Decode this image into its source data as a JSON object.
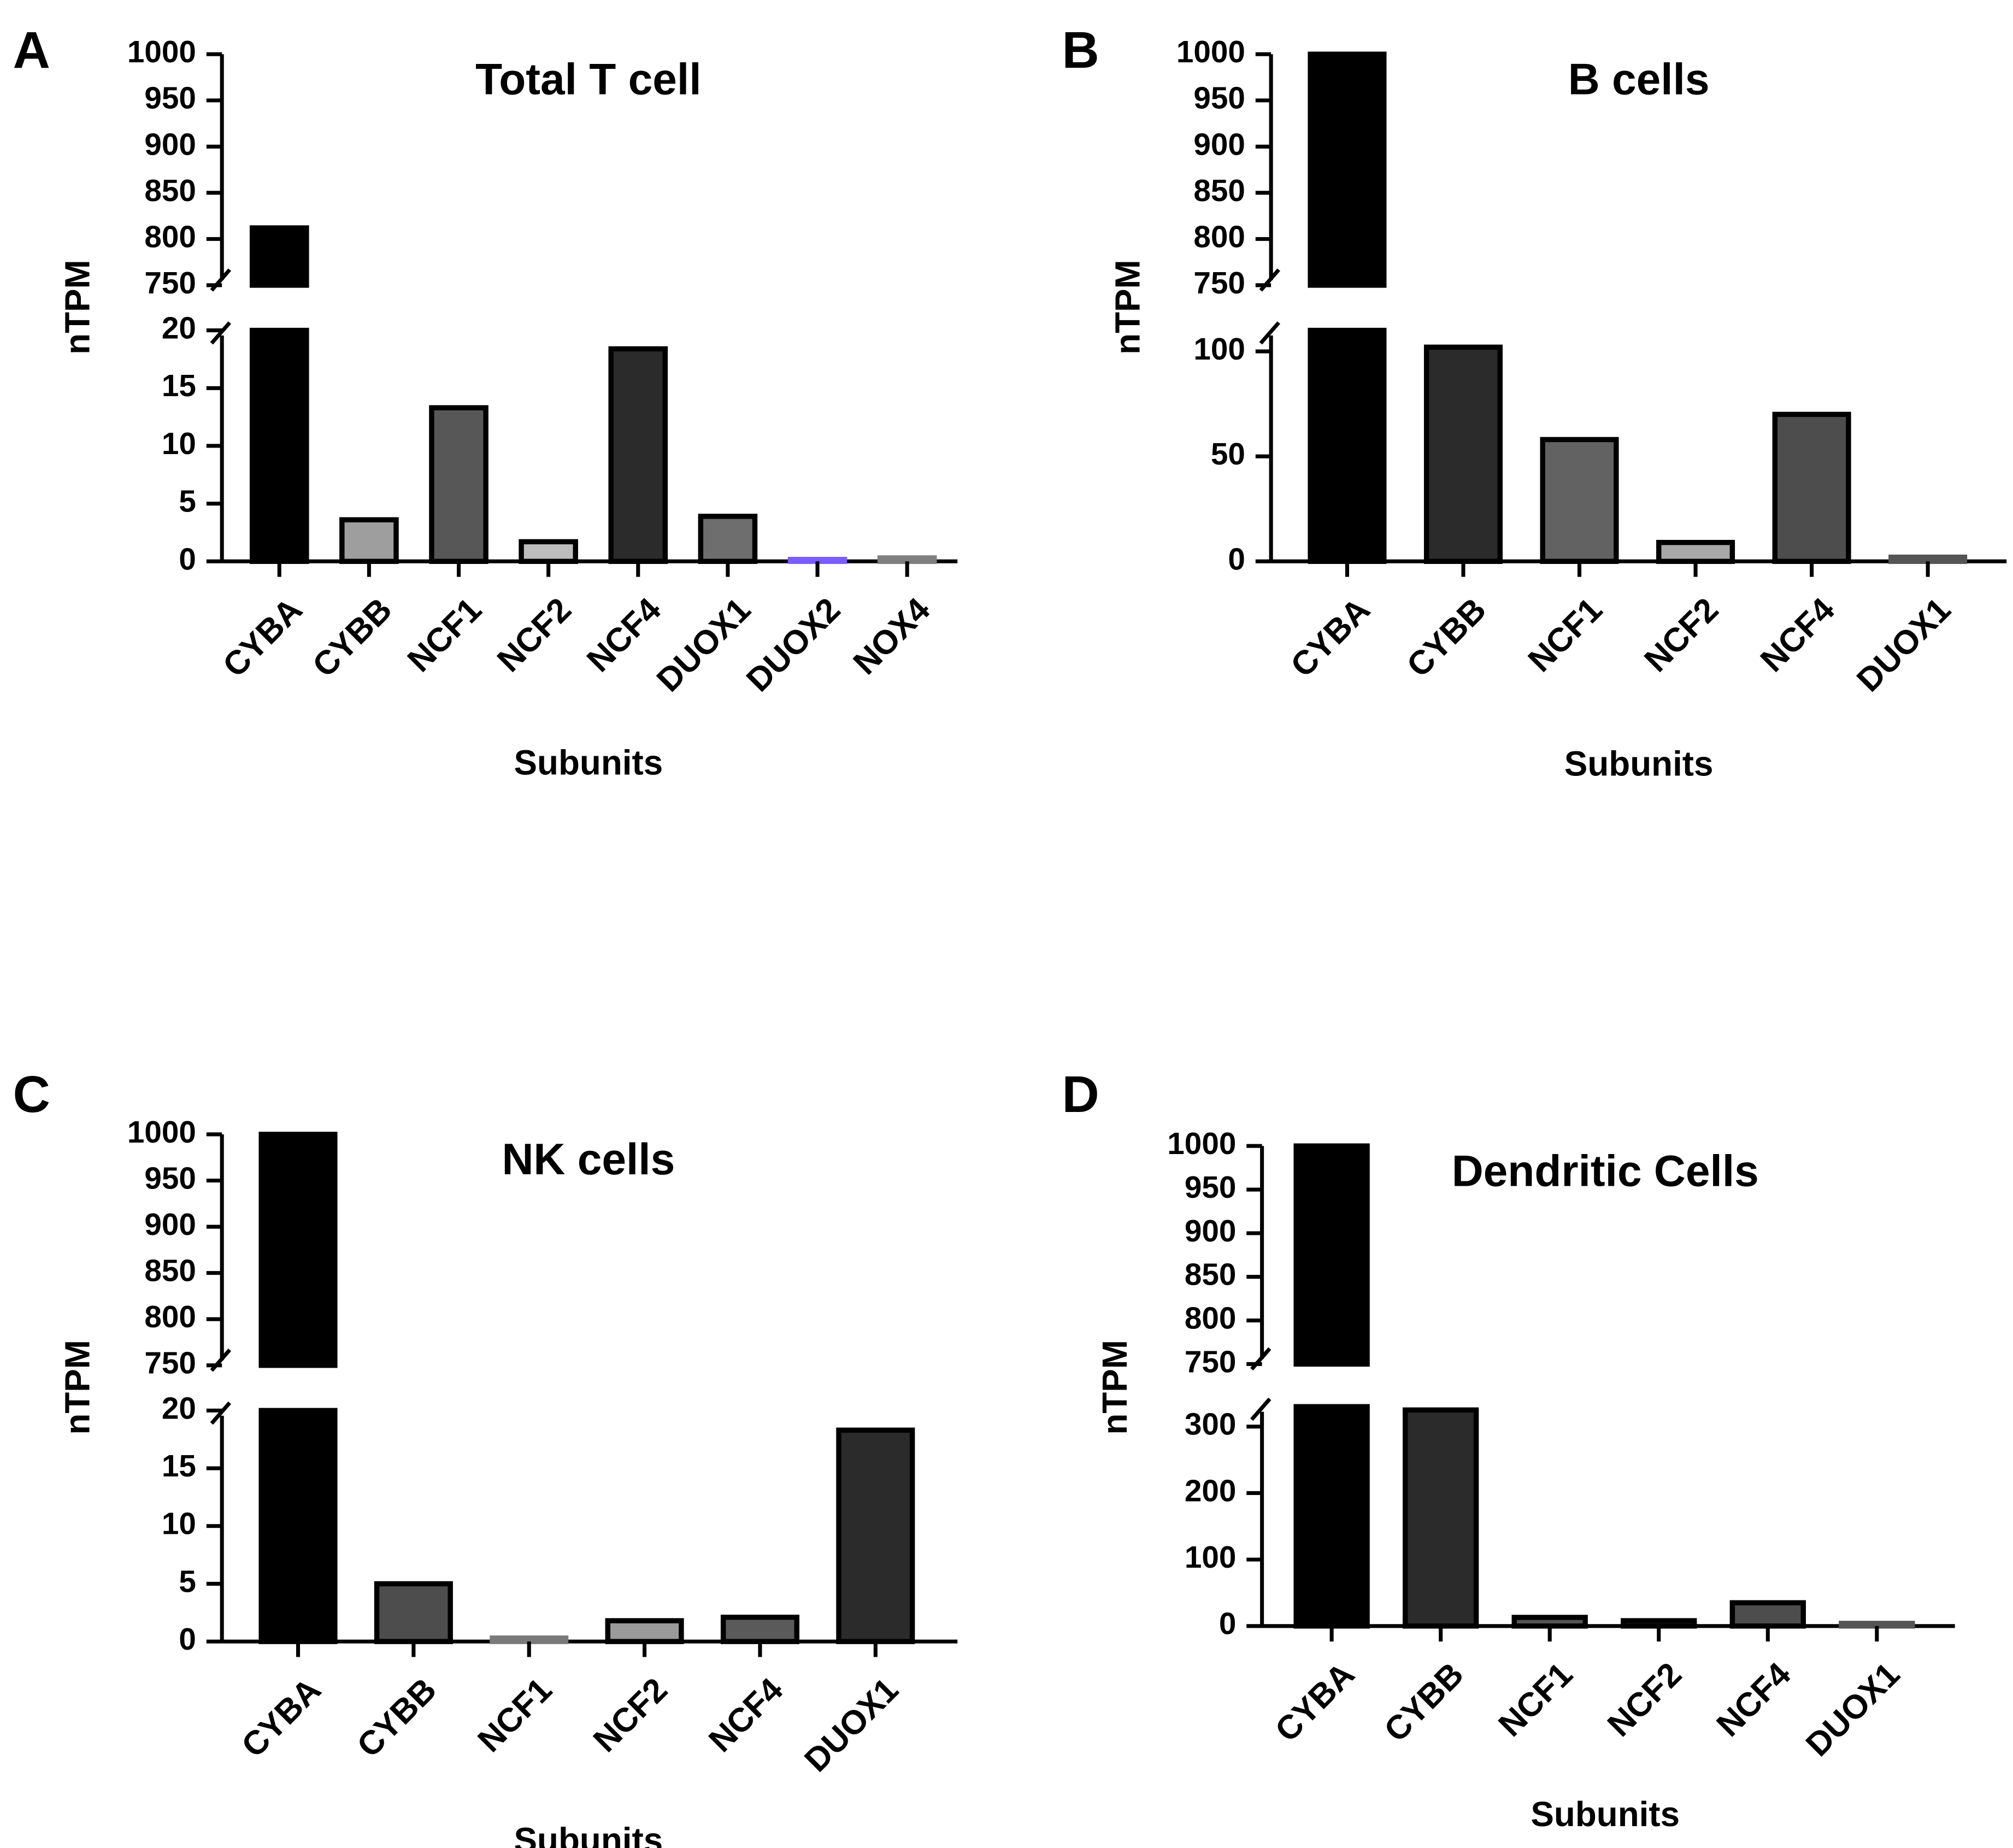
{
  "chart_data": [
    {
      "panel": "A",
      "type": "bar",
      "title": "Total T cell",
      "xlabel": "Subunits",
      "ylabel": "nTPM",
      "axis_break": true,
      "ylim_lower": [
        0,
        20
      ],
      "ylim_upper": [
        750,
        1000
      ],
      "yticks_lower": [
        "0",
        "5",
        "10",
        "15",
        "20"
      ],
      "yticks_upper": [
        "750",
        "800",
        "850",
        "900",
        "950",
        "1000"
      ],
      "categories": [
        "CYBA",
        "CYBB",
        "NCF1",
        "NCF2",
        "NCF4",
        "DUOX1",
        "DUOX2",
        "NOX4"
      ],
      "values": [
        812,
        3.6,
        13.3,
        1.7,
        18.4,
        3.9,
        0.05,
        0.3
      ],
      "colors": [
        "#000000",
        "#9e9e9e",
        "#575757",
        "#bdbdbd",
        "#2b2b2b",
        "#6e6e6e",
        "#7a5cff",
        "#7f7f7f"
      ]
    },
    {
      "panel": "B",
      "type": "bar",
      "title": "B cells",
      "xlabel": "Subunits",
      "ylabel": "nTPM",
      "axis_break": true,
      "ylim_lower": [
        0,
        110
      ],
      "ylim_upper": [
        750,
        1000
      ],
      "yticks_lower": [
        "0",
        "50",
        "100"
      ],
      "yticks_upper": [
        "750",
        "800",
        "850",
        "900",
        "950",
        "1000"
      ],
      "categories": [
        "CYBA",
        "CYBB",
        "NCF1",
        "NCF2",
        "NCF4",
        "DUOX1"
      ],
      "values": [
        1000,
        102,
        58,
        9,
        70,
        2
      ],
      "colors": [
        "#000000",
        "#2b2b2b",
        "#626262",
        "#a8a8a8",
        "#4d4d4d",
        "#555555"
      ]
    },
    {
      "panel": "C",
      "type": "bar",
      "title": "NK cells",
      "xlabel": "Subunits",
      "ylabel": "nTPM",
      "axis_break": true,
      "ylim_lower": [
        0,
        20
      ],
      "ylim_upper": [
        750,
        1000
      ],
      "yticks_lower": [
        "0",
        "5",
        "10",
        "15",
        "20"
      ],
      "yticks_upper": [
        "750",
        "800",
        "850",
        "900",
        "950",
        "1000"
      ],
      "categories": [
        "CYBA",
        "CYBB",
        "NCF1",
        "NCF2",
        "NCF4",
        "DUOX1"
      ],
      "values": [
        1000,
        5.0,
        0.3,
        1.8,
        2.1,
        18.3
      ],
      "colors": [
        "#000000",
        "#4d4d4d",
        "#7a7a7a",
        "#9a9a9a",
        "#5a5a5a",
        "#2b2b2b"
      ]
    },
    {
      "panel": "D",
      "type": "bar",
      "title": "Dendritic Cells",
      "xlabel": "Subunits",
      "ylabel": "nTPM",
      "axis_break": true,
      "ylim_lower": [
        0,
        330
      ],
      "ylim_upper": [
        750,
        1000
      ],
      "yticks_lower": [
        "0",
        "100",
        "200",
        "300"
      ],
      "yticks_upper": [
        "750",
        "800",
        "850",
        "900",
        "950",
        "1000"
      ],
      "categories": [
        "CYBA",
        "CYBB",
        "NCF1",
        "NCF2",
        "NCF4",
        "DUOX1"
      ],
      "values": [
        1000,
        325,
        13,
        8,
        35,
        4
      ],
      "colors": [
        "#000000",
        "#2b2b2b",
        "#555555",
        "#5a5a5a",
        "#4d4d4d",
        "#555555"
      ]
    }
  ]
}
